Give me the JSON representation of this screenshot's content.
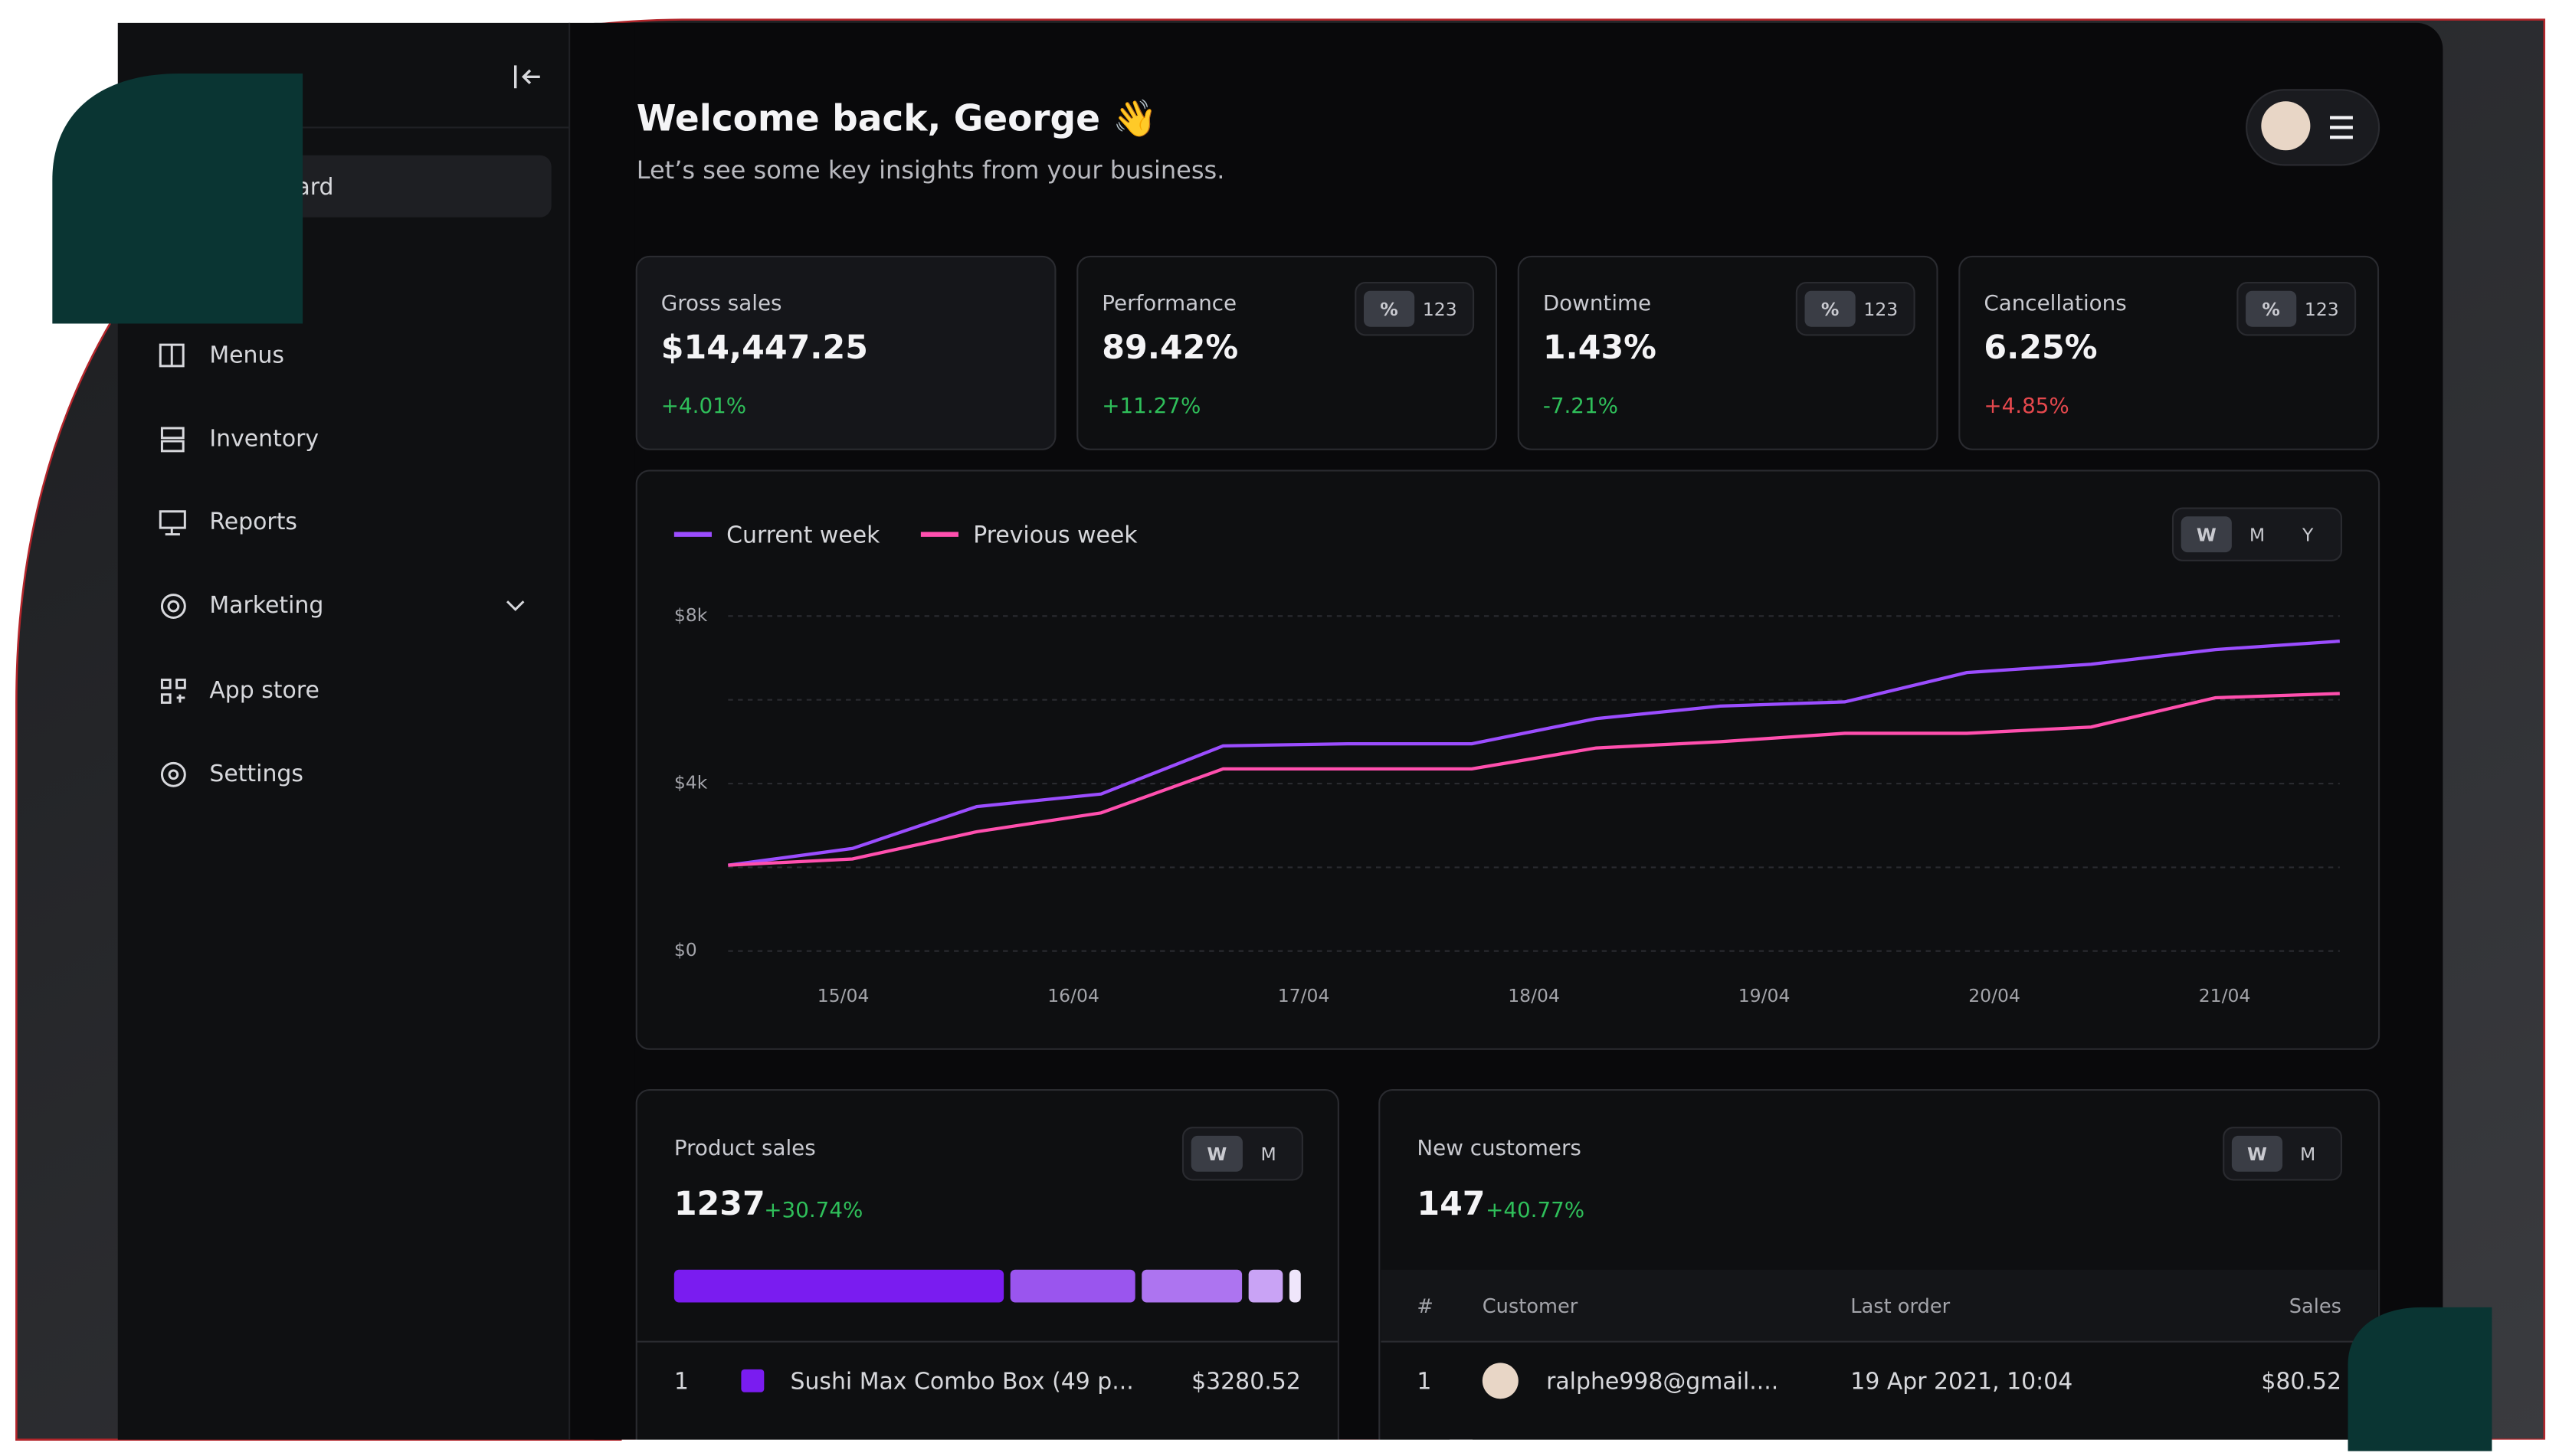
{
  "header": {
    "title": "Welcome back, George 👋",
    "subtitle": "Let’s see some key insights from your business."
  },
  "sidebar": {
    "items": [
      "Dashboard",
      "Menus",
      "Inventory",
      "Reports",
      "Marketing",
      "App store",
      "Settings"
    ]
  },
  "kpi_toggle": [
    "%",
    "123"
  ],
  "kpis": [
    {
      "label": "Gross sales",
      "value": "$14,447.25",
      "change": "+4.01%"
    },
    {
      "label": "Performance",
      "value": "89.42%",
      "change": "+11.27%"
    },
    {
      "label": "Downtime",
      "value": "1.43%",
      "change": "-7.21%"
    },
    {
      "label": "Cancellations",
      "value": "6.25%",
      "change": "+4.85%"
    }
  ],
  "chart_data": {
    "type": "line",
    "period_toggle": [
      "W",
      "M",
      "Y"
    ],
    "x": [
      14.5,
      15.04,
      15.58,
      16.12,
      16.65,
      17.19,
      17.73,
      18.27,
      18.81,
      19.35,
      19.88,
      20.42,
      20.96,
      21.5
    ],
    "xlim": [
      14.5,
      21.5
    ],
    "xticks": [
      {
        "value": 15,
        "label": "15/04"
      },
      {
        "value": 16,
        "label": "16/04"
      },
      {
        "value": 17,
        "label": "17/04"
      },
      {
        "value": 18,
        "label": "18/04"
      },
      {
        "value": 19,
        "label": "19/04"
      },
      {
        "value": 20,
        "label": "20/04"
      },
      {
        "value": 21,
        "label": "21/04"
      }
    ],
    "ylim": [
      0,
      8000
    ],
    "yticks": [
      {
        "value": 0,
        "label": "$0"
      },
      {
        "value": 4000,
        "label": "$4k"
      },
      {
        "value": 8000,
        "label": "$8k"
      }
    ],
    "minor_grid": [
      2000,
      6000
    ],
    "grid": true,
    "legend": "top-left",
    "series": [
      {
        "name": "Current week",
        "color": "#9b4dff",
        "values": [
          2050,
          2450,
          3450,
          3750,
          4900,
          4950,
          4950,
          5550,
          5850,
          5950,
          6650,
          6850,
          7200,
          7400
        ]
      },
      {
        "name": "Previous week",
        "color": "#ff4fae",
        "values": [
          2050,
          2200,
          2850,
          3300,
          4350,
          4350,
          4350,
          4850,
          5000,
          5200,
          5200,
          5350,
          6050,
          6150
        ]
      }
    ]
  },
  "product_sales": {
    "title": "Product sales",
    "value": "1237",
    "change": "+30.74%",
    "toggle": [
      "W",
      "M"
    ],
    "segments": [
      {
        "share": 54.9,
        "color": "#7a1cf0"
      },
      {
        "share": 20.8,
        "color": "#9a55ee"
      },
      {
        "share": 16.7,
        "color": "#ad74f0"
      },
      {
        "share": 5.7,
        "color": "#c9a3f5"
      },
      {
        "share": 1.9,
        "color": "#efe6fb"
      }
    ],
    "rows": [
      [
        "1",
        "Sushi Max Combo Box (49 p...",
        "$3280.52"
      ]
    ]
  },
  "new_customers": {
    "title": "New customers",
    "value": "147",
    "change": "+40.77%",
    "toggle": [
      "W",
      "M"
    ],
    "columns": [
      "#",
      "Customer",
      "Last order",
      "Sales"
    ],
    "rows": [
      [
        "1",
        "ralphe998@gmail....",
        "19 Apr 2021, 10:04",
        "$80.52"
      ]
    ]
  }
}
